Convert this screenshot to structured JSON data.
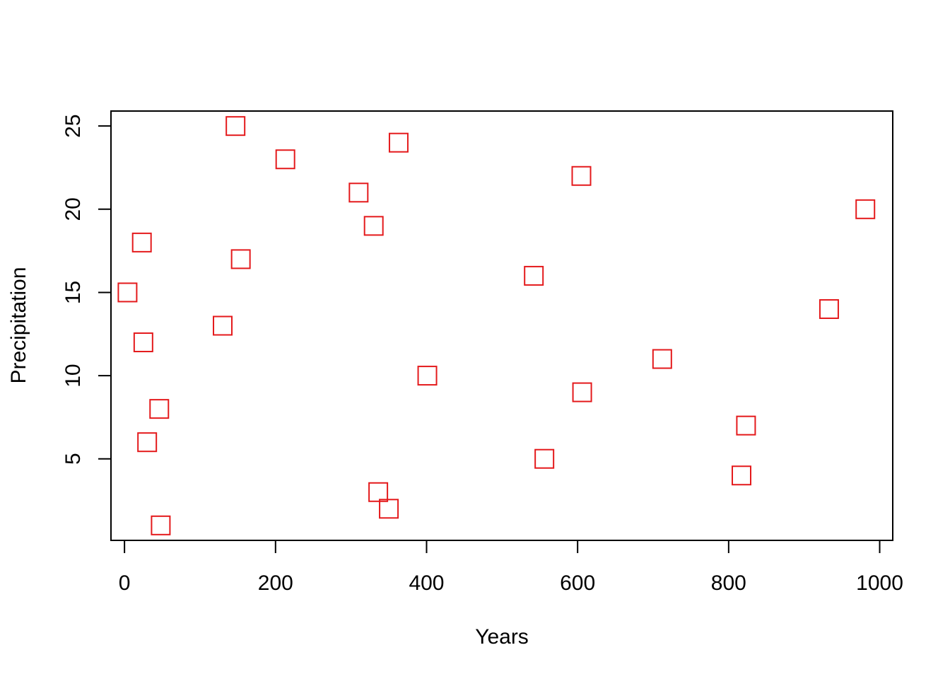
{
  "chart_data": {
    "type": "scatter",
    "title": "",
    "xlabel": "Years",
    "ylabel": "Precipitation",
    "xlim": [
      -17.9,
      1017.3
    ],
    "ylim": [
      0.1,
      25.9
    ],
    "xticks": [
      0,
      200,
      400,
      600,
      800,
      1000
    ],
    "yticks": [
      5,
      10,
      15,
      20,
      25
    ],
    "grid": false,
    "marker": "open-square",
    "colors": {
      "points": "#e41a1c",
      "axes": "#000000"
    },
    "x": [
      4,
      147,
      213,
      363,
      310,
      605,
      330,
      981,
      23,
      154,
      542,
      130,
      933,
      25,
      712,
      401,
      606,
      46,
      823,
      30,
      556,
      817,
      336,
      350,
      48
    ],
    "y": [
      15,
      25,
      23,
      24,
      21,
      22,
      19,
      20,
      18,
      17,
      16,
      13,
      14,
      12,
      11,
      10,
      9,
      8,
      7,
      6,
      5,
      4,
      3,
      2,
      1
    ]
  }
}
